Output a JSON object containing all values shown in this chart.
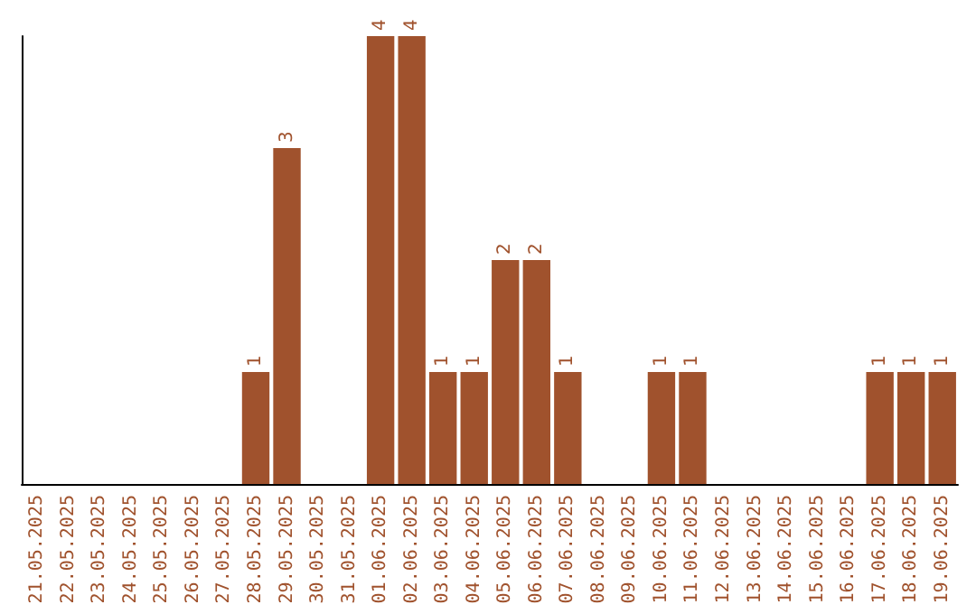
{
  "chart_data": {
    "type": "bar",
    "categories": [
      "21.05.2025",
      "22.05.2025",
      "23.05.2025",
      "24.05.2025",
      "25.05.2025",
      "26.05.2025",
      "27.05.2025",
      "28.05.2025",
      "29.05.2025",
      "30.05.2025",
      "31.05.2025",
      "01.06.2025",
      "02.06.2025",
      "03.06.2025",
      "04.06.2025",
      "05.06.2025",
      "06.06.2025",
      "07.06.2025",
      "08.06.2025",
      "09.06.2025",
      "10.06.2025",
      "11.06.2025",
      "12.06.2025",
      "13.06.2025",
      "14.06.2025",
      "15.06.2025",
      "16.06.2025",
      "17.06.2025",
      "18.06.2025",
      "19.06.2025"
    ],
    "values": [
      0,
      0,
      0,
      0,
      0,
      0,
      0,
      1,
      3,
      0,
      0,
      4,
      4,
      1,
      1,
      2,
      2,
      1,
      0,
      0,
      1,
      1,
      0,
      0,
      0,
      0,
      0,
      1,
      1,
      1
    ],
    "value_labels": [
      null,
      null,
      null,
      null,
      null,
      null,
      null,
      "1",
      "3",
      null,
      null,
      "4",
      "4",
      "1",
      "1",
      "2",
      "2",
      "1",
      null,
      null,
      "1",
      "1",
      null,
      null,
      null,
      null,
      null,
      "1",
      "1",
      "1"
    ],
    "color": "#a0522d",
    "tick_labels": "x"
  }
}
